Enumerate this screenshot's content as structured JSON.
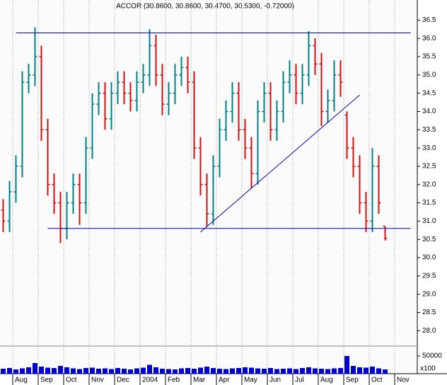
{
  "chart_data": {
    "type": "ohlc",
    "title": "ACCOR (30.8600, 30.8600, 30.4700, 30.5300, -0.72000)",
    "categories": [
      null,
      null,
      "Aug",
      null,
      null,
      null,
      "Sep",
      null,
      null,
      null,
      "Oct",
      null,
      null,
      null,
      "Nov",
      null,
      null,
      null,
      "Dec",
      null,
      null,
      null,
      "2004",
      null,
      null,
      null,
      "Feb",
      null,
      null,
      null,
      "Mar",
      null,
      null,
      null,
      "Apr",
      null,
      null,
      null,
      "May",
      null,
      null,
      null,
      "Jun",
      null,
      null,
      null,
      "Jul",
      null,
      null,
      null,
      "Aug",
      null,
      null,
      null,
      "Sep",
      null,
      null,
      null,
      "Oct",
      null,
      null,
      null,
      "Nov",
      null,
      null
    ],
    "open": [
      31.3,
      31.0,
      31.8,
      32.5,
      34.8,
      35.0,
      35.5,
      33.5,
      32.0,
      31.5,
      30.8,
      31.5,
      32.0,
      31.5,
      33.0,
      34.2,
      34.5,
      33.8,
      34.5,
      34.8,
      34.5,
      34.3,
      34.8,
      35.0,
      35.8,
      35.0,
      34.2,
      34.5,
      35.0,
      35.2,
      34.8,
      33.0,
      32.0,
      31.2,
      32.5,
      33.5,
      34.0,
      34.5,
      33.5,
      33.0,
      32.3,
      34.0,
      34.5,
      33.5,
      34.0,
      34.8,
      35.0,
      34.5,
      35.0,
      35.8,
      35.3,
      34.0,
      34.3,
      35.0,
      33.9,
      33.0,
      32.5,
      31.5,
      31.0,
      32.5,
      30.86,
      null,
      null,
      null,
      null
    ],
    "high": [
      31.6,
      32.1,
      32.8,
      35.1,
      35.3,
      36.3,
      35.8,
      33.8,
      32.3,
      31.8,
      31.8,
      32.3,
      32.3,
      33.3,
      34.5,
      34.8,
      34.8,
      34.8,
      35.1,
      35.1,
      34.8,
      35.1,
      35.3,
      36.25,
      36.1,
      35.3,
      34.8,
      35.3,
      35.5,
      35.5,
      35.1,
      33.3,
      32.3,
      32.8,
      33.8,
      34.3,
      34.8,
      34.8,
      33.8,
      33.3,
      34.3,
      34.8,
      34.8,
      34.3,
      35.1,
      35.4,
      35.3,
      35.3,
      36.2,
      36.0,
      35.6,
      34.6,
      35.4,
      35.4,
      34.0,
      33.3,
      32.8,
      31.8,
      33.0,
      32.8,
      30.86,
      null,
      null,
      null,
      null
    ],
    "low": [
      30.7,
      30.7,
      31.5,
      32.2,
      34.5,
      34.7,
      33.2,
      31.7,
      31.2,
      30.4,
      30.5,
      31.2,
      30.9,
      31.2,
      32.7,
      33.9,
      33.5,
      33.5,
      34.2,
      34.2,
      34.0,
      34.0,
      34.5,
      34.7,
      34.7,
      33.9,
      33.9,
      34.2,
      34.7,
      34.5,
      32.7,
      31.7,
      30.85,
      30.9,
      32.2,
      33.2,
      33.7,
      33.2,
      32.7,
      31.9,
      32.0,
      33.7,
      33.2,
      33.2,
      33.7,
      34.5,
      34.2,
      34.2,
      34.7,
      35.0,
      33.6,
      33.7,
      34.0,
      34.4,
      32.7,
      32.2,
      31.2,
      30.7,
      30.7,
      31.2,
      30.47,
      null,
      null,
      null,
      null
    ],
    "close": [
      31.0,
      31.8,
      32.5,
      34.8,
      35.0,
      35.5,
      33.5,
      32.0,
      31.5,
      30.8,
      31.5,
      32.0,
      31.5,
      33.0,
      34.2,
      34.5,
      33.8,
      34.5,
      34.8,
      34.5,
      34.3,
      34.8,
      35.0,
      35.8,
      35.0,
      34.2,
      34.5,
      35.0,
      35.2,
      34.8,
      33.0,
      32.0,
      31.2,
      32.5,
      33.5,
      34.0,
      34.5,
      33.5,
      33.0,
      32.3,
      34.0,
      34.5,
      33.5,
      34.0,
      34.8,
      35.0,
      34.5,
      35.0,
      35.8,
      35.3,
      34.0,
      34.3,
      35.0,
      34.8,
      33.0,
      32.5,
      31.5,
      31.0,
      32.5,
      31.5,
      30.53,
      null,
      null,
      null,
      null
    ],
    "volume": [
      14000,
      16000,
      12000,
      15000,
      18000,
      30000,
      20000,
      17000,
      16000,
      22000,
      18000,
      15000,
      13000,
      16000,
      17000,
      14000,
      15000,
      13000,
      16000,
      14000,
      12000,
      15000,
      17000,
      25000,
      18000,
      14000,
      13000,
      12000,
      15000,
      16000,
      14000,
      17000,
      20000,
      16000,
      14000,
      13000,
      15000,
      16000,
      18000,
      17000,
      15000,
      14000,
      16000,
      13000,
      14000,
      15000,
      13000,
      16000,
      18000,
      15000,
      14000,
      13000,
      15000,
      16000,
      50000,
      22000,
      18000,
      17000,
      20000,
      15000,
      12000,
      null,
      null,
      null,
      null
    ],
    "up_color": "#008080",
    "down_color": "#d01010",
    "volume_color": "#0000cc",
    "line_color": "#0000b0",
    "ylim": [
      27.6,
      37.05
    ],
    "yticks": [
      {
        "value": 28,
        "label": "28.0"
      },
      28.5,
      {
        "value": 29,
        "label": "29.0"
      },
      29.5,
      {
        "value": 30,
        "label": "30.0"
      },
      30.5,
      {
        "value": 31,
        "label": "31.0"
      },
      31.5,
      {
        "value": 32,
        "label": "32.0"
      },
      32.5,
      {
        "value": 33,
        "label": "33.0"
      },
      33.5,
      {
        "value": 34,
        "label": "34.0"
      },
      34.5,
      {
        "value": 35,
        "label": "35.0"
      },
      35.5,
      {
        "value": 36,
        "label": "36.0"
      },
      36.5
    ],
    "volume_ylim": [
      0,
      76000
    ],
    "volume_yticks": [
      50000
    ],
    "volume_unit_label": "x100",
    "lines": [
      {
        "start": 2,
        "end": 64,
        "y": [
          36.15,
          36.15
        ]
      },
      {
        "start": 7,
        "end": 64,
        "y": [
          30.8,
          30.8
        ]
      },
      {
        "start": 31,
        "end": 56,
        "y": [
          30.7,
          34.45
        ]
      }
    ]
  }
}
